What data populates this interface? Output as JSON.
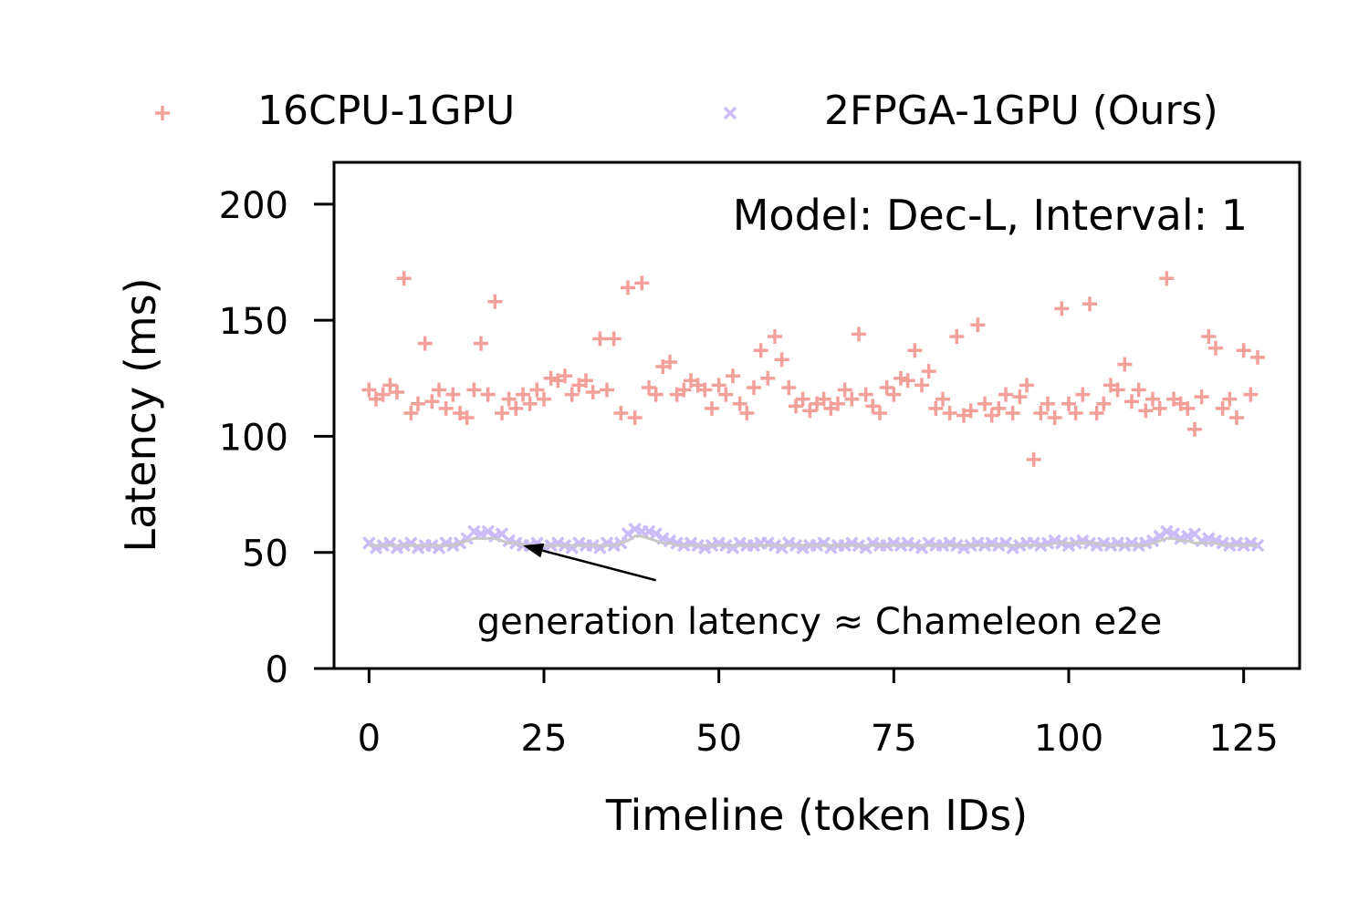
{
  "chart_data": {
    "type": "scatter",
    "xlabel": "Timeline (token IDs)",
    "ylabel": "Latency (ms)",
    "xlim": [
      -5,
      133
    ],
    "ylim": [
      0,
      218
    ],
    "xticks": [
      0,
      25,
      50,
      75,
      100,
      125
    ],
    "yticks": [
      0,
      50,
      100,
      150,
      200
    ],
    "grid": false,
    "legend": {
      "placement": "above plot, two columns",
      "entries": [
        "16CPU-1GPU",
        "2FPGA-1GPU (Ours)"
      ]
    },
    "annotation_text": "Model: Dec-L, Interval: 1",
    "note": {
      "text": "generation latency ≈ Chameleon e2e",
      "arrow_from": [
        41,
        38
      ],
      "arrow_to": [
        22,
        53
      ]
    },
    "x": [
      0,
      1,
      2,
      3,
      4,
      5,
      6,
      7,
      8,
      9,
      10,
      11,
      12,
      13,
      14,
      15,
      16,
      17,
      18,
      19,
      20,
      21,
      22,
      23,
      24,
      25,
      26,
      27,
      28,
      29,
      30,
      31,
      32,
      33,
      34,
      35,
      36,
      37,
      38,
      39,
      40,
      41,
      42,
      43,
      44,
      45,
      46,
      47,
      48,
      49,
      50,
      51,
      52,
      53,
      54,
      55,
      56,
      57,
      58,
      59,
      60,
      61,
      62,
      63,
      64,
      65,
      66,
      67,
      68,
      69,
      70,
      71,
      72,
      73,
      74,
      75,
      76,
      77,
      78,
      79,
      80,
      81,
      82,
      83,
      84,
      85,
      86,
      87,
      88,
      89,
      90,
      91,
      92,
      93,
      94,
      95,
      96,
      97,
      98,
      99,
      100,
      101,
      102,
      103,
      104,
      105,
      106,
      107,
      108,
      109,
      110,
      111,
      112,
      113,
      114,
      115,
      116,
      117,
      118,
      119,
      120,
      121,
      122,
      123,
      124,
      125,
      126,
      127
    ],
    "series": [
      {
        "name": "16CPU-1GPU",
        "marker": "+",
        "color": "#f4a09a",
        "values": [
          120,
          116,
          118,
          122,
          119,
          168,
          110,
          114,
          140,
          115,
          120,
          112,
          118,
          110,
          108,
          120,
          140,
          118,
          158,
          110,
          116,
          112,
          118,
          114,
          120,
          116,
          125,
          124,
          126,
          118,
          122,
          124,
          119,
          142,
          120,
          142,
          110,
          164,
          108,
          166,
          121,
          118,
          130,
          132,
          118,
          120,
          124,
          122,
          120,
          112,
          122,
          118,
          126,
          114,
          110,
          121,
          137,
          125,
          143,
          133,
          121,
          113,
          116,
          111,
          114,
          116,
          112,
          114,
          120,
          116,
          144,
          118,
          113,
          110,
          121,
          118,
          125,
          124,
          137,
          122,
          128,
          112,
          116,
          110,
          143,
          109,
          111,
          148,
          114,
          109,
          112,
          118,
          110,
          117,
          122,
          90,
          110,
          114,
          108,
          155,
          114,
          110,
          118,
          157,
          110,
          114,
          122,
          120,
          131,
          115,
          120,
          111,
          116,
          112,
          168,
          116,
          114,
          112,
          103,
          117,
          143,
          138,
          112,
          116,
          108,
          137,
          118,
          134
        ]
      },
      {
        "name": "2FPGA-1GPU (Ours)",
        "marker": "x",
        "color": "#cbbcf7",
        "values": [
          54,
          52,
          53,
          54,
          52,
          53,
          54,
          52,
          53,
          53,
          52,
          54,
          53,
          54,
          56,
          59,
          58,
          59,
          57,
          58,
          55,
          54,
          53,
          53,
          54,
          52,
          53,
          54,
          53,
          52,
          54,
          53,
          53,
          52,
          54,
          53,
          54,
          58,
          60,
          59,
          59,
          58,
          56,
          55,
          54,
          53,
          54,
          53,
          52,
          53,
          54,
          53,
          52,
          54,
          53,
          53,
          54,
          54,
          53,
          52,
          54,
          53,
          52,
          53,
          53,
          54,
          52,
          53,
          53,
          54,
          53,
          52,
          54,
          53,
          53,
          54,
          53,
          54,
          53,
          52,
          54,
          53,
          53,
          54,
          53,
          52,
          53,
          54,
          53,
          54,
          53,
          54,
          52,
          53,
          54,
          54,
          53,
          54,
          55,
          54,
          53,
          54,
          55,
          54,
          53,
          54,
          53,
          54,
          53,
          54,
          53,
          54,
          55,
          57,
          59,
          58,
          56,
          57,
          58,
          55,
          56,
          55,
          54,
          53,
          54,
          53,
          54,
          53
        ]
      },
      {
        "name": "",
        "style": "line",
        "color": "#c8c8c8",
        "values": [
          53,
          53,
          53,
          53,
          53,
          53,
          53,
          53,
          53,
          53,
          53,
          53,
          53,
          54,
          55,
          56,
          56,
          56,
          56,
          55,
          54,
          54,
          53,
          53,
          53,
          53,
          53,
          53,
          53,
          53,
          53,
          53,
          53,
          53,
          53,
          53,
          54,
          55,
          57,
          57,
          56,
          55,
          54,
          54,
          53,
          53,
          53,
          53,
          53,
          53,
          53,
          53,
          53,
          53,
          53,
          53,
          53,
          53,
          53,
          53,
          53,
          53,
          53,
          53,
          53,
          53,
          53,
          53,
          53,
          53,
          53,
          53,
          53,
          53,
          53,
          53,
          53,
          53,
          53,
          53,
          53,
          53,
          53,
          53,
          53,
          53,
          53,
          53,
          53,
          53,
          53,
          53,
          53,
          53,
          53,
          53,
          53,
          53,
          54,
          54,
          54,
          54,
          54,
          54,
          54,
          53,
          53,
          53,
          53,
          53,
          53,
          53,
          54,
          55,
          56,
          56,
          55,
          55,
          54,
          54,
          54,
          54,
          53,
          53,
          53,
          53,
          53,
          53
        ]
      }
    ]
  }
}
